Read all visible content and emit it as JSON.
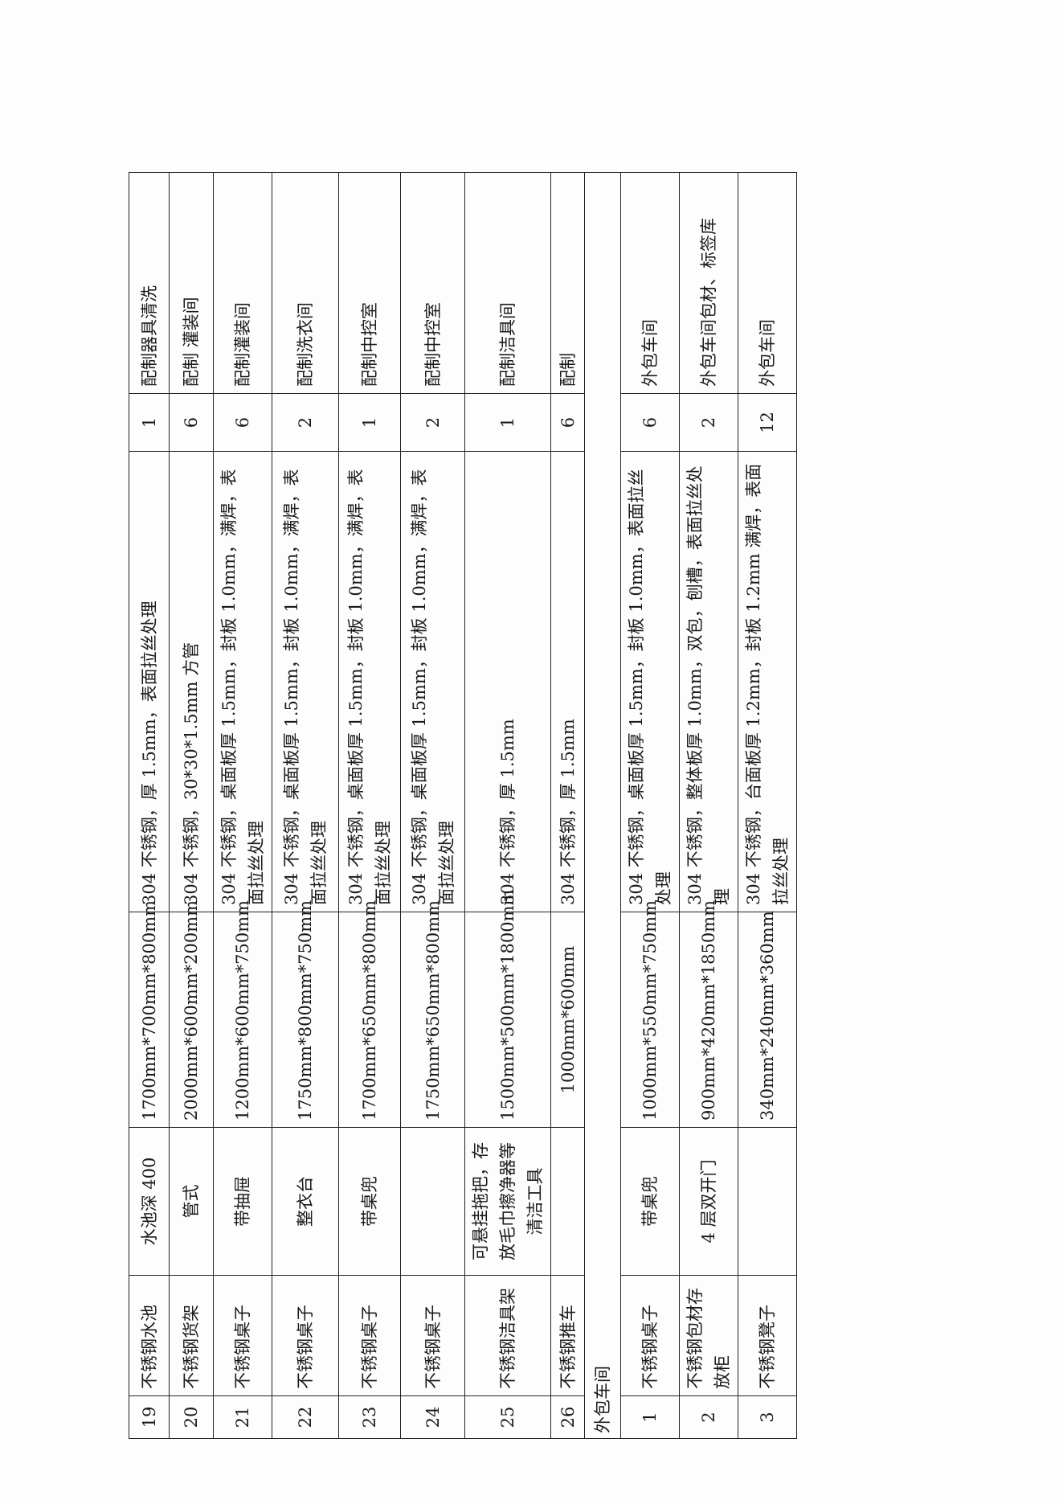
{
  "rows_a": [
    {
      "no": "19",
      "name": "不锈钢水池",
      "feature": "水池深 400",
      "spec": "1700mm*700mm*800mm",
      "material": "304 不锈钢，厚 1.5mm，表面拉丝处理",
      "qty": "1",
      "location": "配制器具清洗"
    },
    {
      "no": "20",
      "name": "不锈钢货架",
      "feature": "管式",
      "spec": "2000mm*600mm*200mm",
      "material": "304 不锈钢，30*30*1.5mm 方管",
      "qty": "6",
      "location": "配制 灌装间"
    },
    {
      "no": "21",
      "name": "不锈钢桌子",
      "feature": "带抽屉",
      "spec": "1200mm*600mm*750mm",
      "material": "304 不锈钢，桌面板厚 1.5mm，封板 1.0mm，满焊，表面拉丝处理",
      "qty": "6",
      "location": "配制灌装间"
    },
    {
      "no": "22",
      "name": "不锈钢桌子",
      "feature": "整衣台",
      "spec": "1750mm*800mm*750mm",
      "material": "304 不锈钢，桌面板厚 1.5mm，封板 1.0mm，满焊，表面拉丝处理",
      "qty": "2",
      "location": "配制洗衣间"
    },
    {
      "no": "23",
      "name": "不锈钢桌子",
      "feature": "带桌兜",
      "spec": "1700mm*650mm*800mm",
      "material": "304 不锈钢，桌面板厚 1.5mm，封板 1.0mm，满焊，表面拉丝处理",
      "qty": "1",
      "location": "配制中控室"
    },
    {
      "no": "24",
      "name": "不锈钢桌子",
      "feature": "",
      "spec": "1750mm*650mm*800mm",
      "material": "304 不锈钢，桌面板厚 1.5mm，封板 1.0mm，满焊，表面拉丝处理",
      "qty": "2",
      "location": "配制中控室"
    },
    {
      "no": "25",
      "name": "不锈钢洁具架",
      "feature": "可悬挂拖把，存放毛巾擦净器等清洁工具",
      "spec": "1500mm*500mm*1800mm",
      "material": "304 不锈钢，厚 1.5mm",
      "qty": "1",
      "location": "配制洁具间"
    },
    {
      "no": "26",
      "name": "不锈钢推车",
      "feature": "",
      "spec": "1000mm*600mm",
      "material": "304 不锈钢，厚 1.5mm",
      "qty": "6",
      "location": "配制"
    }
  ],
  "section": "外包车间",
  "rows_b": [
    {
      "no": "1",
      "name": "不锈钢桌子",
      "feature": "带桌兜",
      "spec": "1000mm*550mm*750mm",
      "material": "304 不锈钢，桌面板厚 1.5mm，封板 1.0mm，表面拉丝处理",
      "qty": "6",
      "location": "外包车间"
    },
    {
      "no": "2",
      "name": "不锈钢包材存放柜",
      "feature": "4 层双开门",
      "spec": "900mm*420mm*1850mm",
      "material": "304 不锈钢，整体板厚 1.0mm，双包，刨槽，表面拉丝处理",
      "qty": "2",
      "location": "外包车间包材、标签库"
    },
    {
      "no": "3",
      "name": "不锈钢凳子",
      "feature": "",
      "spec": "340mm*240mm*360mm",
      "material": "304 不锈钢，台面板厚 1.2mm，封板 1.2mm 满焊，表面拉丝处理",
      "qty": "12",
      "location": "外包车间"
    }
  ]
}
